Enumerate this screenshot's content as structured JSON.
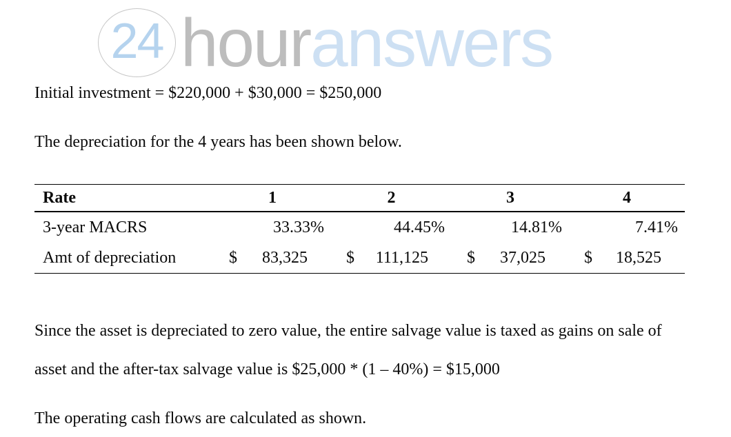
{
  "logo": {
    "circle_text": "24",
    "word_gray": "hour",
    "word_blue": "answers",
    "colors": {
      "circle_border": "#c7c7c7",
      "number_blue": "#b5d3ee",
      "word_gray": "#bdbdbd",
      "word_blue": "#cde0f3"
    }
  },
  "content": {
    "initial_investment": "Initial investment = $220,000 + $30,000 = $250,000",
    "depreciation_intro": "The depreciation for the 4 years has been shown below.",
    "salvage_line1": "Since the asset is depreciated to zero value, the entire salvage value is taxed as gains on sale of",
    "salvage_line2": "asset and the after-tax salvage value is $25,000 * (1 – 40%) = $15,000",
    "operating_cf": "The operating cash flows are calculated as shown."
  },
  "table": {
    "columns": [
      "Rate",
      "1",
      "2",
      "3",
      "4"
    ],
    "rows": {
      "macrs": {
        "label": "3-year MACRS",
        "values": [
          "33.33%",
          "44.45%",
          "14.81%",
          "7.41%"
        ]
      },
      "depreciation": {
        "label": "Amt of depreciation",
        "currency_symbol": "$",
        "values": [
          "83,325",
          "111,125",
          "37,025",
          "18,525"
        ]
      }
    }
  }
}
